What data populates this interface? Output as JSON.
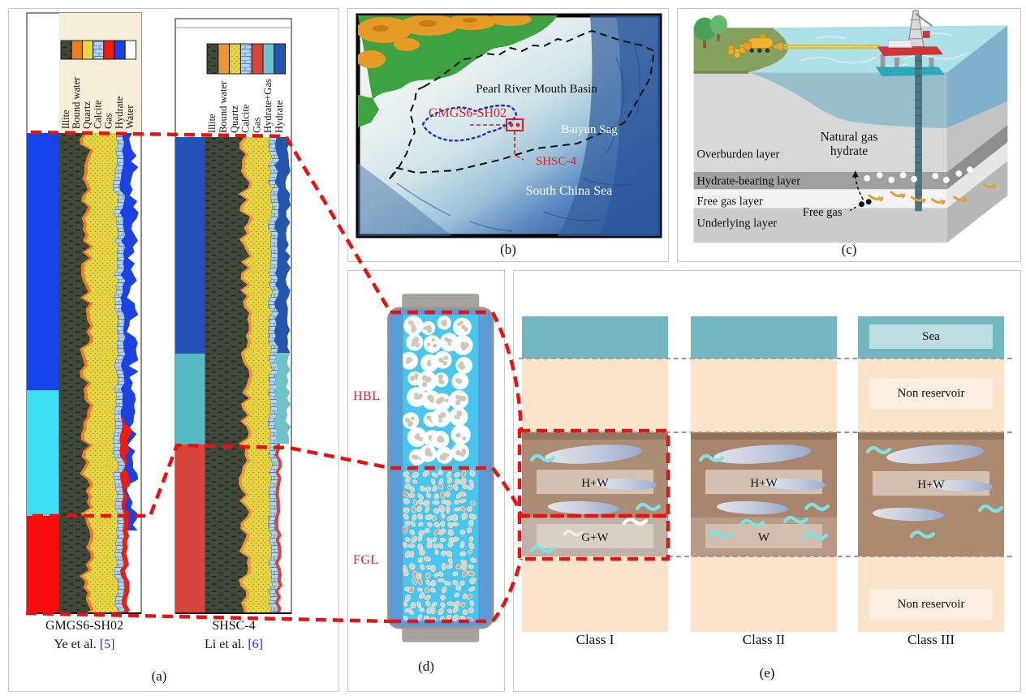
{
  "figure": {
    "type": "multi-panel scientific figure"
  },
  "panel_a": {
    "caption": "(a)",
    "wells": [
      {
        "name": "GMGS6-SH02",
        "reference": "Ye et al.",
        "ref_num": "[5]",
        "legend": [
          {
            "label": "Illite",
            "color": "#3f4839",
            "pattern": "illite"
          },
          {
            "label": "Bound water",
            "color": "#ef7d1f"
          },
          {
            "label": "Quartz",
            "color": "#e9d647"
          },
          {
            "label": "Calcite",
            "color": "#b6d2ea",
            "pattern": "calcite"
          },
          {
            "label": "Gas",
            "color": "#ee1c11"
          },
          {
            "label": "Hydrate",
            "color": "#1d41e3"
          },
          {
            "label": "Water",
            "color": "#ffffff"
          }
        ],
        "depth_zones": [
          {
            "name": "hydrate zone",
            "color": "#1544ef"
          },
          {
            "name": "mixed zone",
            "color": "#3bdef2"
          },
          {
            "name": "gas zone",
            "color": "#fb0c0c"
          }
        ]
      },
      {
        "name": "SHSC-4",
        "reference": "Li et al.",
        "ref_num": "[6]",
        "legend": [
          {
            "label": "Illite",
            "color": "#3f4839",
            "pattern": "illite"
          },
          {
            "label": "Bound water",
            "color": "#ee9633"
          },
          {
            "label": "Quartz",
            "color": "#e9d647",
            "pattern": "quartz"
          },
          {
            "label": "Calcite",
            "color": "#b6d2ea",
            "pattern": "calcite"
          },
          {
            "label": "Gas",
            "color": "#d8453c"
          },
          {
            "label": "Hydrate+Gas",
            "color": "#6ec3cb"
          },
          {
            "label": "Hydrate",
            "color": "#2456ae"
          }
        ],
        "depth_zones": [
          {
            "name": "hydrate zone",
            "color": "#2353b4"
          },
          {
            "name": "mixed zone",
            "color": "#59bac7"
          },
          {
            "name": "gas zone",
            "color": "#d8453c"
          }
        ]
      }
    ]
  },
  "panel_b": {
    "caption": "(b)",
    "basin_label": "Pearl River Mouth Basin",
    "well1_label": "GMGS6-SH02",
    "sag_label": "Baiyun Sag",
    "well2_label": "SHSC-4",
    "sea_label": "South China Sea"
  },
  "panel_c": {
    "caption": "(c)",
    "hydrate_label_line1": "Natural gas",
    "hydrate_label_line2": "hydrate",
    "overburden_label": "Overburden layer",
    "hbl_label": "Hydrate-bearing layer",
    "fgl_label": "Free gas layer",
    "free_gas_label": "Free gas",
    "underlying_label": "Underlying layer"
  },
  "panel_d": {
    "caption": "(d)",
    "hbl_label": "HBL",
    "fgl_label": "FGL"
  },
  "panel_e": {
    "caption": "(e)",
    "classes": [
      {
        "label": "Class I",
        "upper_label": "H+W",
        "lower_label": "G+W"
      },
      {
        "label": "Class II",
        "upper_label": "H+W",
        "lower_label": "W"
      },
      {
        "label": "Class III",
        "upper_label": "H+W",
        "sea_label": "Sea",
        "nonres_label": "Non reservoir",
        "bottom_label": "Non reservoir"
      }
    ]
  },
  "colors": {
    "connector_red": "#e41414",
    "reference_blue": "#2a2ae0",
    "sea_band": "#74b6bf",
    "non_reservoir": "#fbe4cb",
    "reservoir_brown": "#ab8a72",
    "hydrate_band_label_bg": "#d6c2b4"
  }
}
